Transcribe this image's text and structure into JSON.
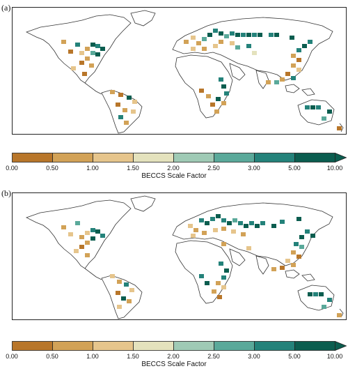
{
  "panels": [
    {
      "label": "(a)"
    },
    {
      "label": "(b)"
    }
  ],
  "colorbar": {
    "title": "BECCS Scale Factor",
    "ticks": [
      "0.00",
      "0.50",
      "1.00",
      "1.50",
      "2.00",
      "2.50",
      "3.00",
      "5.00",
      "10.00"
    ],
    "colors": [
      "#b8762a",
      "#d2a257",
      "#e6c58c",
      "#e4e2bd",
      "#9fcab5",
      "#5aa99a",
      "#24827a",
      "#0b5d4f"
    ]
  }
}
